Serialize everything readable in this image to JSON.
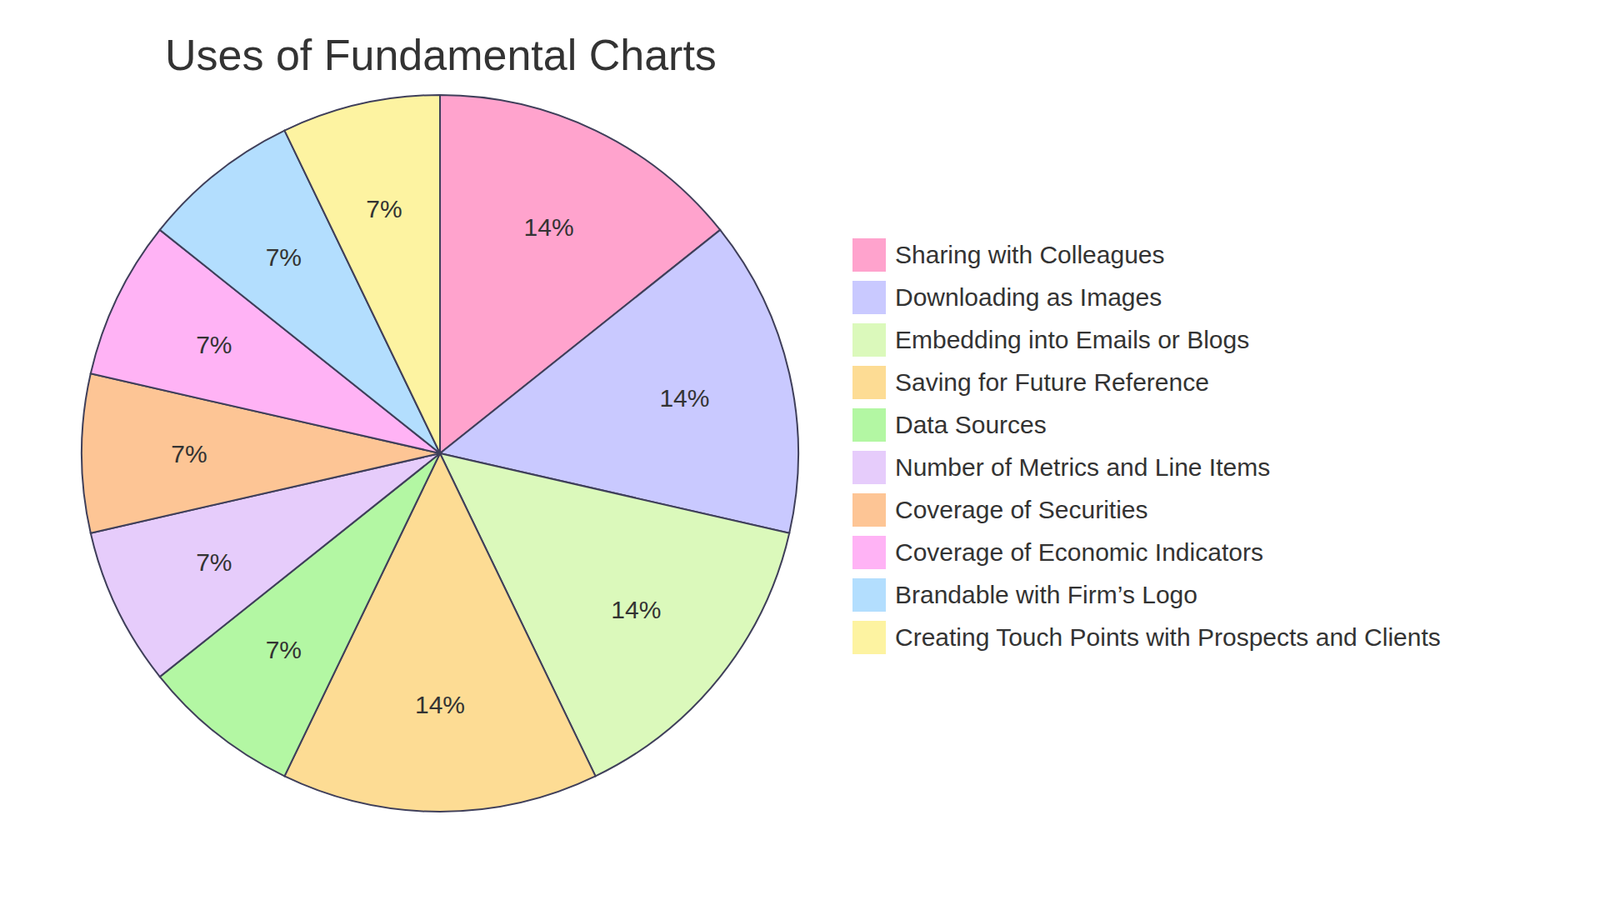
{
  "chart_data": {
    "type": "pie",
    "title": "Uses of Fundamental Charts",
    "categories": [
      "Sharing with Colleagues",
      "Downloading as Images",
      "Embedding into Emails or Blogs",
      "Saving for Future Reference",
      "Data Sources",
      "Number of Metrics and Line Items",
      "Coverage of Securities",
      "Coverage of Economic Indicators",
      "Brandable with Firm’s Logo",
      "Creating Touch Points with Prospects and Clients"
    ],
    "values": [
      14,
      14,
      14,
      14,
      7,
      7,
      7,
      7,
      7,
      7
    ],
    "value_labels": [
      "14%",
      "14%",
      "14%",
      "14%",
      "7%",
      "7%",
      "7%",
      "7%",
      "7%",
      "7%"
    ],
    "colors": [
      "#ffa3cd",
      "#c9c9ff",
      "#dbf9bb",
      "#fddc94",
      "#b3f7a3",
      "#e6ccfb",
      "#fdc595",
      "#ffb3f5",
      "#b3defe",
      "#fdf3a1"
    ],
    "data_labels": true,
    "legend": "right"
  }
}
